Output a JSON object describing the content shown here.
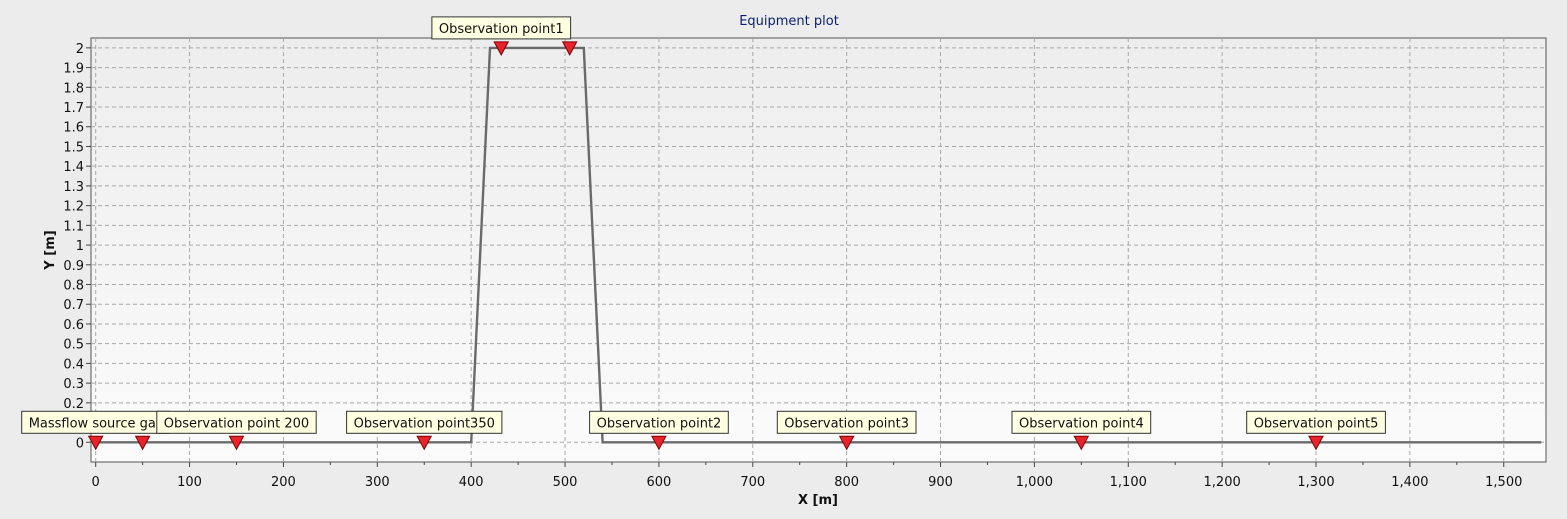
{
  "chart_data": {
    "type": "line",
    "title": "Equipment plot",
    "xlabel": "X [m]",
    "ylabel": "Y [m]",
    "xlim": [
      -5,
      1545
    ],
    "ylim": [
      -0.1,
      2.05
    ],
    "xticks": [
      0,
      100,
      200,
      300,
      400,
      500,
      600,
      700,
      800,
      900,
      1000,
      1100,
      1200,
      1300,
      1400,
      1500
    ],
    "xtick_labels": [
      "0",
      "100",
      "200",
      "300",
      "400",
      "500",
      "600",
      "700",
      "800",
      "900",
      "1,000",
      "1,100",
      "1,200",
      "1,300",
      "1,400",
      "1,500"
    ],
    "yticks": [
      0,
      0.2,
      0.3,
      0.4,
      0.5,
      0.6,
      0.7,
      0.8,
      0.9,
      1,
      1.1,
      1.2,
      1.3,
      1.4,
      1.5,
      1.6,
      1.7,
      1.8,
      1.9,
      2
    ],
    "ytick_labels": [
      "0",
      "0.2",
      "0.3",
      "0.4",
      "0.5",
      "0.6",
      "0.7",
      "0.8",
      "0.9",
      "1",
      "1.1",
      "1.2",
      "1.3",
      "1.4",
      "1.5",
      "1.6",
      "1.7",
      "1.8",
      "1.9",
      "2"
    ],
    "grid": true,
    "series": [
      {
        "x": [
          0,
          400,
          420,
          520,
          540,
          1540
        ],
        "y": [
          0,
          0,
          2,
          2,
          0,
          0
        ],
        "color": "#6a6a6a"
      }
    ],
    "annotations": [
      {
        "text": "Massflow source gas",
        "x": 0,
        "y": 0
      },
      {
        "text": "",
        "x": 50,
        "y": 0
      },
      {
        "text": "Observation point 200",
        "x": 150,
        "y": 0
      },
      {
        "text": "Observation point350",
        "x": 350,
        "y": 0
      },
      {
        "text": "Observation point1",
        "x": 432,
        "y": 2
      },
      {
        "text": "",
        "x": 505,
        "y": 2
      },
      {
        "text": "Observation point2",
        "x": 600,
        "y": 0
      },
      {
        "text": "Observation point3",
        "x": 800,
        "y": 0
      },
      {
        "text": "Observation point4",
        "x": 1050,
        "y": 0
      },
      {
        "text": "Observation point5",
        "x": 1300,
        "y": 0
      }
    ],
    "marker_color": "#e8232c",
    "label_background": "#ffffe1",
    "plot_background": "#f4f4f4"
  }
}
